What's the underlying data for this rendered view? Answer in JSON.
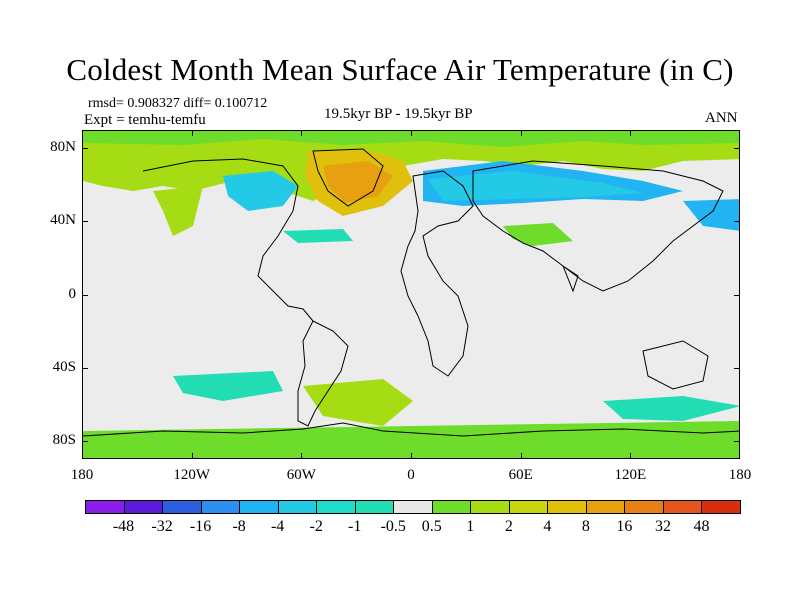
{
  "title": "Coldest Month Mean Surface Air Temperature (in C)",
  "stats": "rmsd= 0.908327 diff= 0.100712",
  "experiment": "Expt = temhu-temfu",
  "period": "19.5kyr BP - 19.5kyr BP",
  "season": "ANN",
  "map": {
    "lon_range": [
      -180,
      180
    ],
    "lat_range": [
      -90,
      90
    ],
    "background_color": "#ececec",
    "y_ticks": [
      {
        "label": "80N",
        "lat": 80
      },
      {
        "label": "40N",
        "lat": 40
      },
      {
        "label": "0",
        "lat": 0
      },
      {
        "label": "40S",
        "lat": -40
      },
      {
        "label": "80S",
        "lat": -80
      }
    ],
    "x_ticks": [
      {
        "label": "180",
        "lon": -180
      },
      {
        "label": "120W",
        "lon": -120
      },
      {
        "label": "60W",
        "lon": -60
      },
      {
        "label": "0",
        "lon": 0
      },
      {
        "label": "60E",
        "lon": 60
      },
      {
        "label": "120E",
        "lon": 120
      },
      {
        "label": "180",
        "lon": 180
      }
    ]
  },
  "colorbar": {
    "colors": [
      "#8a1ee8",
      "#5a1cd8",
      "#2c5ee0",
      "#2f8ff0",
      "#22b4f2",
      "#24c9e6",
      "#1fdcc8",
      "#22ddb4",
      "#e8e8e8",
      "#6edc2a",
      "#a6dc14",
      "#c8d40e",
      "#e0c00c",
      "#e6a010",
      "#e88018",
      "#e4561e",
      "#d82e10"
    ],
    "labels": [
      "-48",
      "-32",
      "-16",
      "-8",
      "-4",
      "-2",
      "-1",
      "-0.5",
      "0.5",
      "1",
      "2",
      "4",
      "8",
      "16",
      "32",
      "48"
    ]
  }
}
